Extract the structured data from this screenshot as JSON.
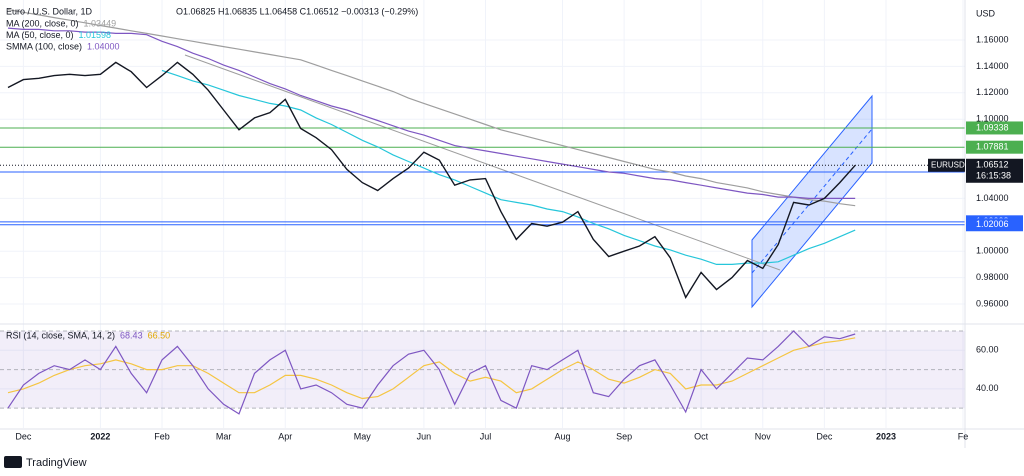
{
  "chart_data": {
    "type": "line",
    "title": "Euro / U.S. Dollar, 1D",
    "ohlc_label": "O1.06825 H1.06835 L1.06458 C1.06512 −0.00313 (−0.29%)",
    "axis_unit": "USD",
    "symbol": "EURUSD",
    "last_price": 1.06512,
    "countdown": "16:15:38",
    "branding": "TradingView",
    "grid": true,
    "categories": [
      null,
      "Dec",
      null,
      null,
      null,
      null,
      "2022",
      null,
      null,
      null,
      "Feb",
      null,
      null,
      null,
      "Mar",
      null,
      null,
      null,
      "Apr",
      null,
      null,
      null,
      null,
      "May",
      null,
      null,
      null,
      "Jun",
      null,
      null,
      null,
      "Jul",
      null,
      null,
      null,
      null,
      "Aug",
      null,
      null,
      null,
      "Sep",
      null,
      null,
      null,
      null,
      "Oct",
      null,
      null,
      null,
      "Nov",
      null,
      null,
      null,
      "Dec",
      null,
      null,
      null,
      "2023",
      null,
      null,
      null,
      null,
      "Fe"
    ],
    "ylim": [
      0.9464,
      1.1903
    ],
    "yticks": [
      {
        "value": 0.96,
        "label": "0.96000"
      },
      {
        "value": 0.98,
        "label": "0.98000"
      },
      {
        "value": 1.0,
        "label": "1.00000"
      },
      {
        "value": 1.04,
        "label": "1.04000"
      },
      {
        "value": 1.1,
        "label": "1.10000"
      },
      {
        "value": 1.12,
        "label": "1.12000"
      },
      {
        "value": 1.14,
        "label": "1.14000"
      },
      {
        "value": 1.16,
        "label": "1.16000"
      }
    ],
    "series": [
      {
        "name": "MA (200, close, 0)",
        "last_label": "1.03449",
        "color": "#9e9e9e",
        "values": [
          1.183,
          1.181,
          1.179,
          1.177,
          1.175,
          1.173,
          1.171,
          1.169,
          1.167,
          1.165,
          1.163,
          1.161,
          1.159,
          1.157,
          1.155,
          1.153,
          1.151,
          1.149,
          1.147,
          1.145,
          1.141,
          1.137,
          1.133,
          1.129,
          1.125,
          1.121,
          1.116,
          1.112,
          1.108,
          1.104,
          1.1,
          1.096,
          1.092,
          1.089,
          1.086,
          1.083,
          1.08,
          1.077,
          1.074,
          1.071,
          1.068,
          1.065,
          1.062,
          1.06,
          1.057,
          1.055,
          1.052,
          1.05,
          1.048,
          1.045,
          1.043,
          1.041,
          1.039,
          1.038,
          1.036,
          1.0345,
          null,
          null,
          null,
          null,
          null,
          null,
          null
        ]
      },
      {
        "name": "MA (50, close, 0)",
        "last_label": "1.01598",
        "color": "#26c6da",
        "values": [
          null,
          null,
          null,
          null,
          null,
          null,
          null,
          null,
          null,
          null,
          1.137,
          1.133,
          1.129,
          1.126,
          1.122,
          1.118,
          1.115,
          1.112,
          1.11,
          1.107,
          1.101,
          1.096,
          1.09,
          1.084,
          1.079,
          1.073,
          1.068,
          1.063,
          1.058,
          1.054,
          1.049,
          1.044,
          1.039,
          1.037,
          1.035,
          1.032,
          1.03,
          1.026,
          1.021,
          1.017,
          1.012,
          1.008,
          1.004,
          1.001,
          0.997,
          0.994,
          0.99,
          0.99,
          0.991,
          0.991,
          0.992,
          0.997,
          1.002,
          1.006,
          1.011,
          1.016,
          null,
          null,
          null,
          null,
          null,
          null,
          null
        ]
      },
      {
        "name": "SMMA (100, close)",
        "last_label": "1.04000",
        "color": "#7e57c2",
        "values": [
          1.169,
          1.168,
          1.168,
          1.167,
          1.167,
          1.166,
          1.166,
          1.165,
          1.165,
          1.164,
          1.159,
          1.155,
          1.15,
          1.146,
          1.141,
          1.137,
          1.132,
          1.127,
          1.123,
          1.118,
          1.114,
          1.11,
          1.107,
          1.103,
          1.099,
          1.095,
          1.091,
          1.088,
          1.084,
          1.08,
          1.078,
          1.076,
          1.074,
          1.072,
          1.07,
          1.068,
          1.066,
          1.064,
          1.062,
          1.06,
          1.059,
          1.057,
          1.055,
          1.054,
          1.052,
          1.05,
          1.048,
          1.046,
          1.044,
          1.043,
          1.041,
          1.041,
          1.04,
          1.04,
          1.04,
          1.04,
          null,
          null,
          null,
          null,
          null,
          null,
          null
        ]
      },
      {
        "name": "EURUSD",
        "color": "#131722",
        "values": [
          1.124,
          1.13,
          1.131,
          1.133,
          1.134,
          1.133,
          1.134,
          1.143,
          1.136,
          1.124,
          1.133,
          1.143,
          1.134,
          1.122,
          1.107,
          1.092,
          1.101,
          1.105,
          1.115,
          1.093,
          1.086,
          1.077,
          1.062,
          1.052,
          1.046,
          1.055,
          1.063,
          1.075,
          1.069,
          1.05,
          1.054,
          1.055,
          1.03,
          1.009,
          1.021,
          1.019,
          1.022,
          1.03,
          1.009,
          0.996,
          1.0,
          1.004,
          1.011,
          0.995,
          0.965,
          0.984,
          0.971,
          0.98,
          0.993,
          0.987,
          1.005,
          1.037,
          1.035,
          1.04,
          1.052,
          1.06512,
          null,
          null,
          null,
          null,
          null,
          null,
          null
        ]
      }
    ],
    "levels": [
      {
        "value": 1.09338,
        "color": "#4caf50"
      },
      {
        "value": 1.07881,
        "color": "#4caf50"
      },
      {
        "value": 1.06004,
        "color": "#2962ff"
      },
      {
        "value": 1.02228,
        "color": "#2962ff"
      },
      {
        "value": 1.02006,
        "color": "#2962ff"
      }
    ],
    "rsi": {
      "name": "RSI (14, close, SMA, 14, 2)",
      "color": "#7e57c2",
      "sma_color": "#f5c542",
      "sma_label": "66.50",
      "ylim": [
        19.7,
        72.6
      ],
      "yticks": [
        {
          "value": 40,
          "label": "40.00"
        },
        {
          "value": 60,
          "label": "60.00"
        }
      ],
      "bands": [
        70,
        50,
        30
      ],
      "values": [
        30,
        42,
        48,
        52,
        50,
        55,
        50,
        62,
        48,
        38,
        55,
        62,
        52,
        40,
        32,
        27,
        48,
        55,
        60,
        40,
        42,
        38,
        32,
        30,
        42,
        52,
        58,
        60,
        50,
        32,
        48,
        52,
        34,
        30,
        52,
        50,
        55,
        60,
        38,
        36,
        45,
        52,
        55,
        42,
        28,
        50,
        40,
        48,
        56,
        55,
        62,
        70,
        62,
        67,
        66,
        68.43,
        null,
        null,
        null,
        null,
        null,
        null,
        null
      ],
      "sma": [
        38,
        40,
        43,
        47,
        50,
        52,
        53,
        55,
        53,
        50,
        50,
        52,
        52,
        48,
        43,
        38,
        38,
        42,
        47,
        47,
        45,
        42,
        38,
        35,
        36,
        40,
        46,
        52,
        54,
        48,
        44,
        46,
        44,
        38,
        40,
        45,
        50,
        54,
        50,
        45,
        43,
        46,
        50,
        48,
        40,
        42,
        42,
        44,
        48,
        52,
        56,
        60,
        62,
        64,
        65,
        66.5,
        null,
        null,
        null,
        null,
        null,
        null,
        null
      ]
    }
  }
}
